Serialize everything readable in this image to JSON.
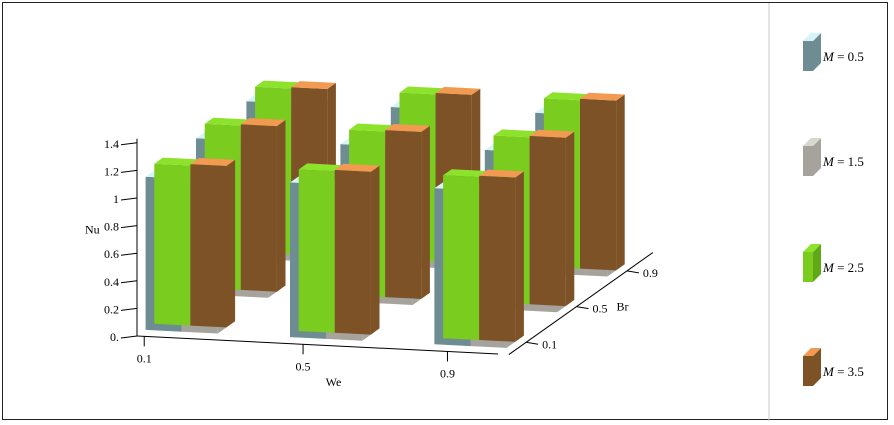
{
  "chart_data": {
    "type": "bar",
    "subtype": "3d-grouped-bar",
    "xlabel": "We",
    "ylabel": "Nu",
    "zlabel": "Br",
    "x_categories": [
      "0.1",
      "0.5",
      "0.9"
    ],
    "z_categories": [
      "0.1",
      "0.5",
      "0.9"
    ],
    "ylim": [
      0,
      1.4
    ],
    "yticks": [
      "0.",
      "0.2",
      "0.4",
      "0.6",
      "0.8",
      "1",
      "1.2",
      "1.4"
    ],
    "grid": false,
    "legend_position": "right",
    "series": [
      {
        "name": "M = 0.5",
        "legend_label": "= 0.5",
        "color": "#6e8d93",
        "values": [
          [
            1.11,
            1.13,
            1.14
          ],
          [
            1.12,
            1.14,
            1.15
          ],
          [
            1.13,
            1.15,
            1.16
          ]
        ]
      },
      {
        "name": "M = 1.5",
        "legend_label": "= 1.5",
        "color": "#a5a39c",
        "values": [
          [
            1.1,
            1.12,
            1.13
          ],
          [
            1.11,
            1.13,
            1.14
          ],
          [
            1.12,
            1.14,
            1.15
          ]
        ]
      },
      {
        "name": "M = 2.5",
        "legend_label": "= 2.5",
        "color": "#7acc1e",
        "values": [
          [
            1.16,
            1.19,
            1.2
          ],
          [
            1.17,
            1.2,
            1.21
          ],
          [
            1.18,
            1.21,
            1.22
          ]
        ]
      },
      {
        "name": "M = 3.5",
        "legend_label": "= 3.5",
        "color": "#7c5226",
        "values": [
          [
            1.17,
            1.2,
            1.21
          ],
          [
            1.18,
            1.21,
            1.22
          ],
          [
            1.19,
            1.22,
            1.23
          ]
        ]
      }
    ]
  },
  "legend": {
    "var_symbol": "M",
    "top_colors": [
      "#d4f4f8",
      "#d8d8d3",
      "#8de22c",
      "#f29a52"
    ],
    "side_colors": [
      "#6e8d93",
      "#a5a39c",
      "#5fa817",
      "#7c5226"
    ]
  }
}
